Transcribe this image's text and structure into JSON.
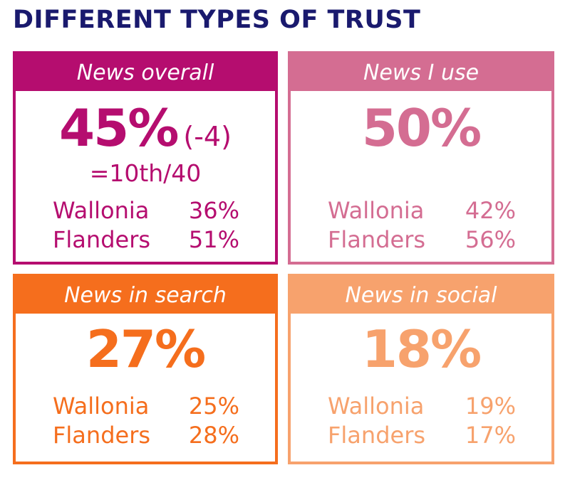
{
  "title": "DIFFERENT TYPES OF TRUST",
  "colors": {
    "title": "#1a1a6e",
    "news_overall": "#b50d6f",
    "news_i_use": "#d46d92",
    "news_in_search": "#f56e1d",
    "news_in_social": "#f7a26d"
  },
  "cards": {
    "overall": {
      "heading": "News overall",
      "value": "45%",
      "change": "(-4)",
      "rank": "=10th/40",
      "regions": [
        {
          "name": "Wallonia",
          "value": "36%"
        },
        {
          "name": "Flanders",
          "value": "51%"
        }
      ]
    },
    "use": {
      "heading": "News I use",
      "value": "50%",
      "regions": [
        {
          "name": "Wallonia",
          "value": "42%"
        },
        {
          "name": "Flanders",
          "value": "56%"
        }
      ]
    },
    "search": {
      "heading": "News in search",
      "value": "27%",
      "regions": [
        {
          "name": "Wallonia",
          "value": "25%"
        },
        {
          "name": "Flanders",
          "value": "28%"
        }
      ]
    },
    "social": {
      "heading": "News in social",
      "value": "18%",
      "regions": [
        {
          "name": "Wallonia",
          "value": "19%"
        },
        {
          "name": "Flanders",
          "value": "17%"
        }
      ]
    }
  }
}
